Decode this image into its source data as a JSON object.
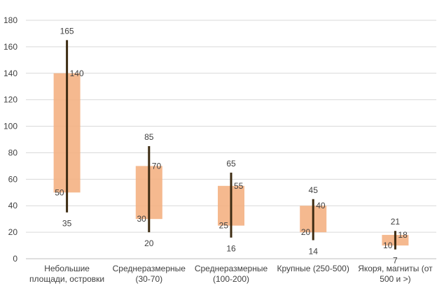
{
  "colors": {
    "box": "#f4b183",
    "whisker": "#3d2b12",
    "grid": "#d9d9d9",
    "axis": "#bfbfbf",
    "text": "#404040"
  },
  "chart_data": {
    "type": "bar",
    "subtype": "floating-range",
    "title": "",
    "xlabel": "",
    "ylabel": "",
    "ylim": [
      0,
      180
    ],
    "yticks": [
      0,
      20,
      40,
      60,
      80,
      100,
      120,
      140,
      160,
      180
    ],
    "grid": true,
    "legend": "none",
    "categories": [
      [
        "Небольшие",
        "площади, островки"
      ],
      [
        "Среднеразмерные",
        "(30-70)"
      ],
      [
        "Среднеразмерные",
        "(100-200)"
      ],
      [
        "Крупные (250-500)"
      ],
      [
        "Якоря, магниты (от",
        "500 и >)"
      ]
    ],
    "series": [
      {
        "name": "",
        "role": "range_low",
        "values": [
          50,
          30,
          25,
          20,
          10
        ]
      },
      {
        "name": "",
        "role": "range_high",
        "values": [
          140,
          70,
          55,
          40,
          18
        ]
      },
      {
        "name": "",
        "role": "min",
        "values": [
          35,
          20,
          16,
          14,
          7
        ]
      },
      {
        "name": "",
        "role": "max",
        "values": [
          165,
          85,
          65,
          45,
          21
        ]
      }
    ]
  }
}
